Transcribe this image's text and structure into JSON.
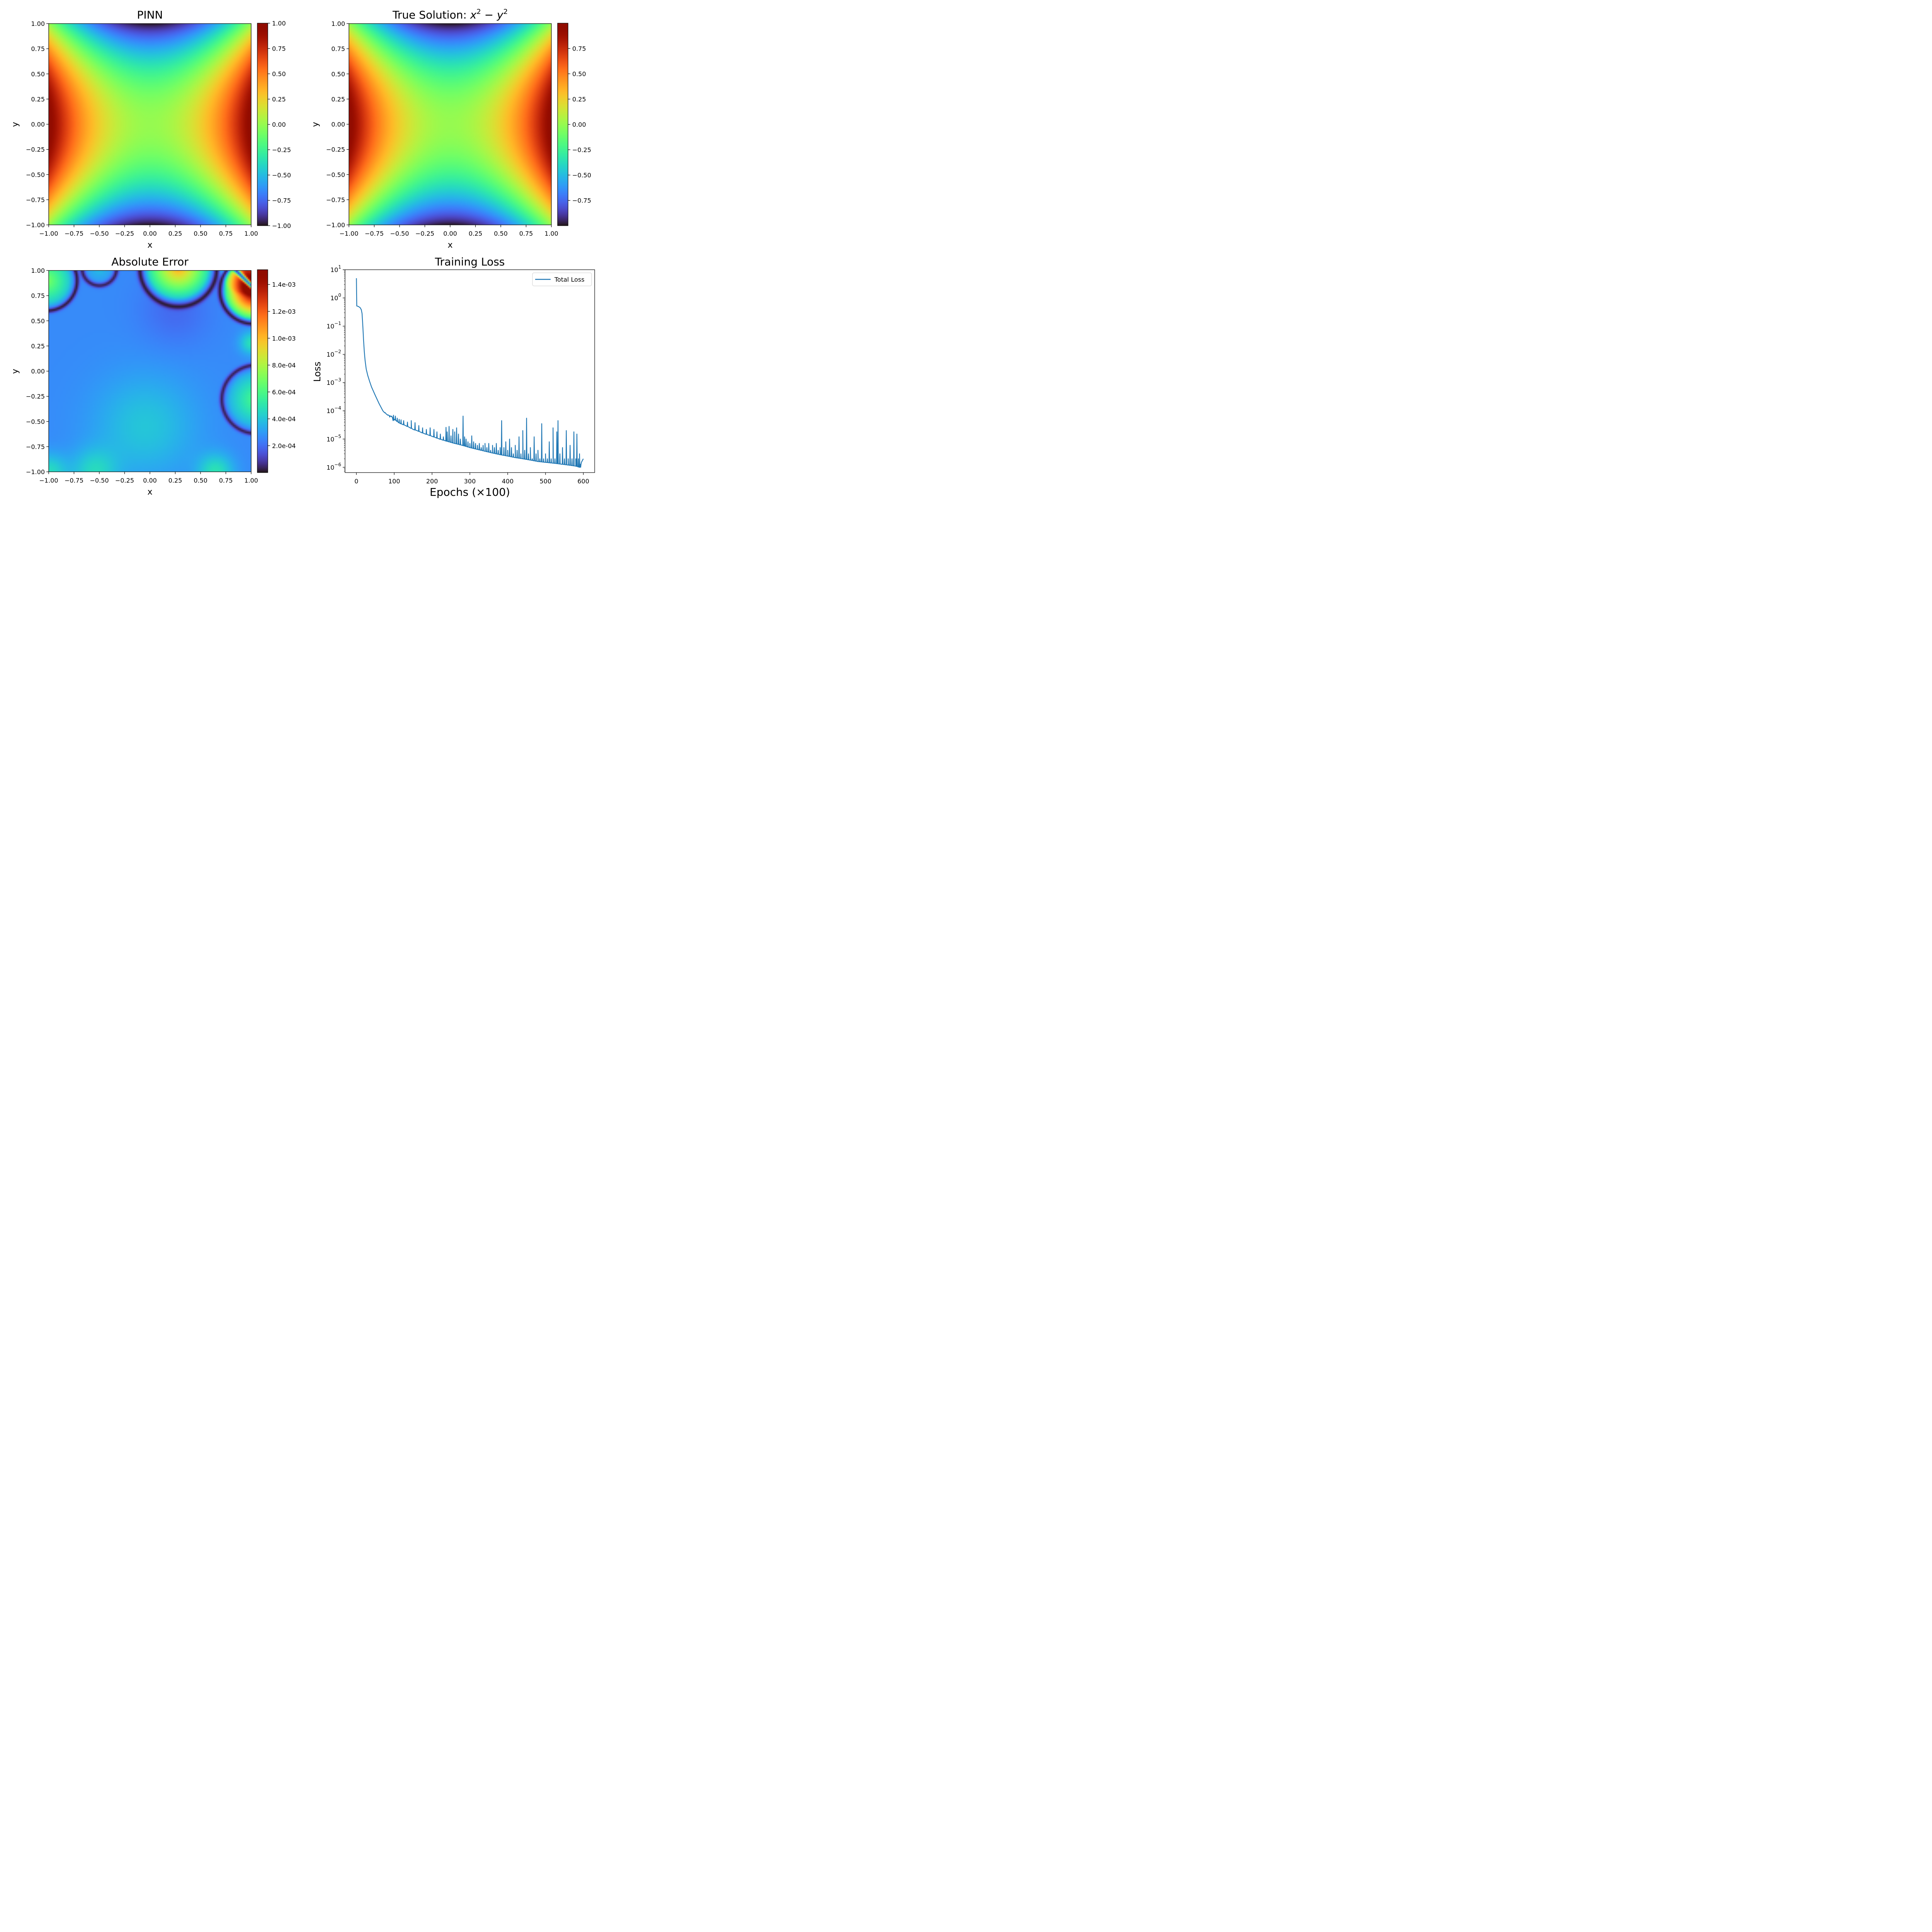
{
  "chart_data": [
    {
      "type": "heatmap",
      "title": "PINN",
      "xlabel": "x",
      "ylabel": "y",
      "xlim": [
        -1,
        1
      ],
      "ylim": [
        -1,
        1
      ],
      "xticks": [
        "−1.00",
        "−0.75",
        "−0.50",
        "−0.25",
        "0.00",
        "0.25",
        "0.50",
        "0.75",
        "1.00"
      ],
      "yticks": [
        "−1.00",
        "−0.75",
        "−0.50",
        "−0.25",
        "0.00",
        "0.25",
        "0.50",
        "0.75",
        "1.00"
      ],
      "colormap": "turbo",
      "colorbar": {
        "range": [
          -1,
          1
        ],
        "ticks": [
          -1,
          -0.75,
          -0.5,
          -0.25,
          0,
          0.25,
          0.5,
          0.75,
          1
        ],
        "tick_labels": [
          "−1.00",
          "−0.75",
          "−0.50",
          "−0.25",
          "0.00",
          "0.25",
          "0.50",
          "0.75",
          "1.00"
        ]
      }
    },
    {
      "type": "heatmap",
      "title": "True Solution:",
      "title_math": {
        "base1": "x",
        "exp1": "2",
        "op": "−",
        "base2": "y",
        "exp2": "2"
      },
      "xlabel": "x",
      "ylabel": "y",
      "xlim": [
        -1,
        1
      ],
      "ylim": [
        -1,
        1
      ],
      "xticks": [
        "−1.00",
        "−0.75",
        "−0.50",
        "−0.25",
        "0.00",
        "0.25",
        "0.50",
        "0.75",
        "1.00"
      ],
      "yticks": [
        "−1.00",
        "−0.75",
        "−0.50",
        "−0.25",
        "0.00",
        "0.25",
        "0.50",
        "0.75",
        "1.00"
      ],
      "colormap": "turbo",
      "colorbar": {
        "range": [
          -0.9996,
          0.9996
        ],
        "ticks": [
          -0.75,
          -0.5,
          -0.25,
          0,
          0.25,
          0.5,
          0.75
        ],
        "tick_labels": [
          "−0.75",
          "−0.50",
          "−0.25",
          "0.00",
          "0.25",
          "0.50",
          "0.75"
        ]
      }
    },
    {
      "type": "heatmap",
      "title": "Absolute Error",
      "xlabel": "x",
      "ylabel": "y",
      "xlim": [
        -1,
        1
      ],
      "ylim": [
        -1,
        1
      ],
      "xticks": [
        "−1.00",
        "−0.75",
        "−0.50",
        "−0.25",
        "0.00",
        "0.25",
        "0.50",
        "0.75",
        "1.00"
      ],
      "yticks": [
        "−1.00",
        "−0.75",
        "−0.50",
        "−0.25",
        "0.00",
        "0.25",
        "0.50",
        "0.75",
        "1.00"
      ],
      "colormap": "turbo",
      "colorbar": {
        "range": [
          0,
          0.00151
        ],
        "ticks": [
          0.0002,
          0.0004,
          0.0006,
          0.0008,
          0.001,
          0.0012,
          0.0014
        ],
        "tick_labels": [
          "2.0e-04",
          "4.0e-04",
          "6.0e-04",
          "8.0e-04",
          "1.0e-03",
          "1.2e-03",
          "1.4e-03"
        ]
      }
    },
    {
      "type": "line",
      "title": "Training Loss",
      "xlabel": "Epochs (×100)",
      "ylabel": "Loss",
      "yscale": "log",
      "xlim": [
        -30,
        630
      ],
      "ylim": [
        6.5e-07,
        10
      ],
      "xticks": [
        0,
        100,
        200,
        300,
        400,
        500,
        600
      ],
      "yticks": [
        {
          "base": "10",
          "exp": "1"
        },
        {
          "base": "10",
          "exp": "0"
        },
        {
          "base": "10",
          "exp": "−1"
        },
        {
          "base": "10",
          "exp": "−2"
        },
        {
          "base": "10",
          "exp": "−3"
        },
        {
          "base": "10",
          "exp": "−4"
        },
        {
          "base": "10",
          "exp": "−5"
        },
        {
          "base": "10",
          "exp": "−6"
        }
      ],
      "legend": {
        "position": "top-right"
      },
      "series": [
        {
          "name": "Total Loss",
          "color": "#1f77b4",
          "x": [
            0,
            1,
            5,
            10,
            13,
            15,
            17,
            19,
            21,
            23,
            26,
            30,
            35,
            40,
            50,
            60,
            70,
            78,
            80,
            85,
            90,
            95,
            97,
            100,
            105,
            110,
            115,
            120,
            130,
            140,
            145,
            150,
            160,
            170,
            180,
            190,
            200,
            210,
            220,
            240,
            260,
            280,
            300,
            320,
            340,
            360,
            380,
            400,
            420,
            440,
            460,
            480,
            500,
            520,
            540,
            560,
            580,
            590,
            595,
            600
          ],
          "y": [
            5,
            0.52,
            0.5,
            0.45,
            0.38,
            0.28,
            0.1,
            0.03,
            0.012,
            0.006,
            0.003,
            0.0018,
            0.0011,
            0.0007,
            0.00035,
            0.00018,
            0.0001,
            8e-05,
            7.5e-05,
            7e-05,
            6.5e-05,
            6e-05,
            4.5e-05,
            5e-05,
            4.5e-05,
            4e-05,
            3.6e-05,
            3.4e-05,
            3e-05,
            2.6e-05,
            2.4e-05,
            2.2e-05,
            2e-05,
            1.75e-05,
            1.55e-05,
            1.4e-05,
            1.25e-05,
            1.12e-05,
            1e-05,
            8.3e-06,
            7e-06,
            6e-06,
            5e-06,
            4.3e-06,
            3.7e-06,
            3.2e-06,
            2.8e-06,
            2.5e-06,
            2.2e-06,
            2e-06,
            1.8e-06,
            1.6e-06,
            1.5e-06,
            1.4e-06,
            1.3e-06,
            1.2e-06,
            1.1e-06,
            1e-06,
            1.5e-06,
            2e-06
          ]
        }
      ],
      "spikes": [
        [
          75,
          8.5e-05
        ],
        [
          83,
          7e-05
        ],
        [
          88,
          6e-05
        ],
        [
          93,
          6.5e-05
        ],
        [
          98,
          7e-05
        ],
        [
          103,
          6.5e-05
        ],
        [
          108,
          5.5e-05
        ],
        [
          113,
          5e-05
        ],
        [
          118,
          4.8e-05
        ],
        [
          125,
          4.5e-05
        ],
        [
          135,
          4e-05
        ],
        [
          145,
          4.5e-05
        ],
        [
          155,
          3.8e-05
        ],
        [
          165,
          3e-05
        ],
        [
          175,
          2.5e-05
        ],
        [
          185,
          2.2e-05
        ],
        [
          195,
          2.5e-05
        ],
        [
          205,
          2.2e-05
        ],
        [
          213,
          1.8e-05
        ],
        [
          222,
          1.5e-05
        ],
        [
          230,
          1.2e-05
        ],
        [
          237,
          2.6e-05
        ],
        [
          240,
          1.8e-05
        ],
        [
          245,
          2.8e-05
        ],
        [
          250,
          1.3e-05
        ],
        [
          255,
          2.2e-05
        ],
        [
          260,
          1.8e-05
        ],
        [
          265,
          2.5e-05
        ],
        [
          270,
          1.5e-05
        ],
        [
          275,
          1e-05
        ],
        [
          282,
          6.5e-05
        ],
        [
          286,
          1.2e-05
        ],
        [
          290,
          1e-05
        ],
        [
          295,
          8e-06
        ],
        [
          300,
          7e-06
        ],
        [
          305,
          1.3e-05
        ],
        [
          310,
          8e-06
        ],
        [
          315,
          7e-06
        ],
        [
          320,
          6e-06
        ],
        [
          325,
          7e-06
        ],
        [
          330,
          5e-06
        ],
        [
          335,
          6e-06
        ],
        [
          340,
          7e-06
        ],
        [
          345,
          5e-06
        ],
        [
          350,
          7e-06
        ],
        [
          355,
          4e-06
        ],
        [
          360,
          6e-06
        ],
        [
          365,
          5e-06
        ],
        [
          370,
          7e-06
        ],
        [
          375,
          4e-06
        ],
        [
          380,
          5e-06
        ],
        [
          384,
          4.5e-05
        ],
        [
          390,
          5e-06
        ],
        [
          395,
          8e-06
        ],
        [
          400,
          4e-06
        ],
        [
          405,
          1e-05
        ],
        [
          410,
          5e-06
        ],
        [
          415,
          3e-06
        ],
        [
          420,
          6e-06
        ],
        [
          425,
          4e-06
        ],
        [
          430,
          1.2e-05
        ],
        [
          435,
          3e-06
        ],
        [
          440,
          2e-05
        ],
        [
          445,
          4e-06
        ],
        [
          450,
          5.5e-05
        ],
        [
          455,
          3e-06
        ],
        [
          460,
          5e-06
        ],
        [
          465,
          2e-06
        ],
        [
          470,
          1.2e-05
        ],
        [
          475,
          3e-06
        ],
        [
          480,
          4e-06
        ],
        [
          485,
          2e-06
        ],
        [
          490,
          3.5e-05
        ],
        [
          495,
          2e-06
        ],
        [
          500,
          3e-06
        ],
        [
          505,
          2e-06
        ],
        [
          510,
          8e-06
        ],
        [
          515,
          2e-06
        ],
        [
          520,
          2.5e-05
        ],
        [
          525,
          2e-06
        ],
        [
          530,
          1.8e-05
        ],
        [
          533,
          4.5e-05
        ],
        [
          538,
          3e-06
        ],
        [
          545,
          5e-06
        ],
        [
          550,
          2e-06
        ],
        [
          555,
          2e-05
        ],
        [
          560,
          2e-06
        ],
        [
          565,
          6e-06
        ],
        [
          570,
          2e-06
        ],
        [
          575,
          1.8e-05
        ],
        [
          580,
          2e-06
        ],
        [
          583,
          1.5e-05
        ],
        [
          587,
          2e-06
        ],
        [
          590,
          3e-06
        ],
        [
          593,
          1e-06
        ]
      ]
    }
  ]
}
